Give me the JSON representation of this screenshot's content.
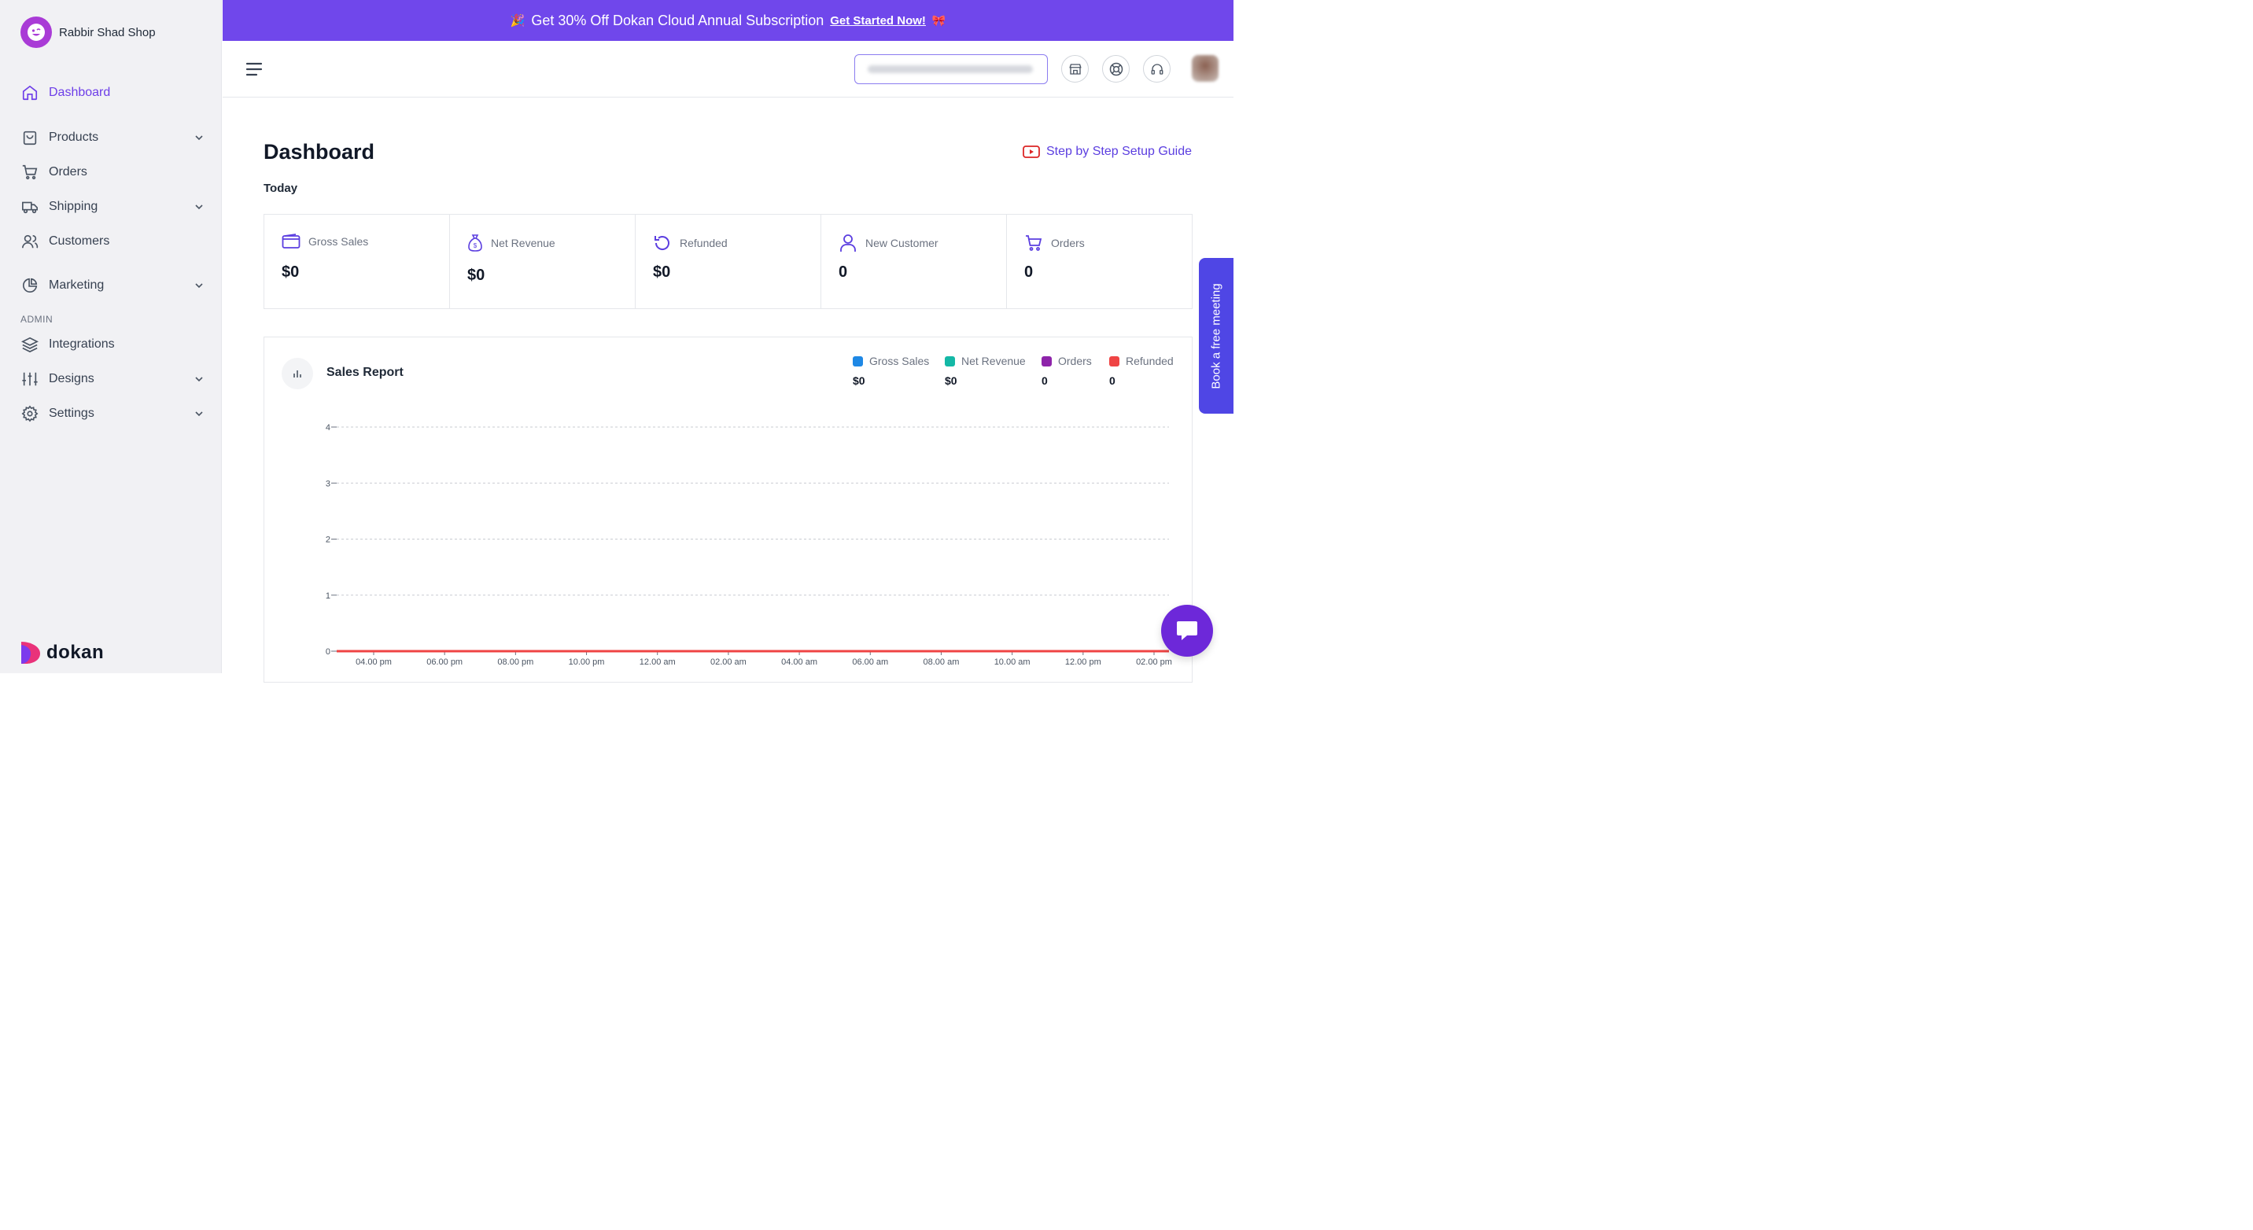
{
  "sidebar": {
    "shop_name": "Rabbir Shad Shop",
    "items": [
      {
        "label": "Dashboard",
        "icon": "home-icon",
        "active": true
      },
      {
        "label": "Products",
        "icon": "bag-icon",
        "has_submenu": true
      },
      {
        "label": "Orders",
        "icon": "cart-icon"
      },
      {
        "label": "Shipping",
        "icon": "truck-icon",
        "has_submenu": true
      },
      {
        "label": "Customers",
        "icon": "users-icon"
      },
      {
        "label": "Marketing",
        "icon": "pie-chart-icon",
        "has_submenu": true
      },
      {
        "label": "Integrations",
        "icon": "layers-icon"
      },
      {
        "label": "Designs",
        "icon": "sliders-icon",
        "has_submenu": true
      },
      {
        "label": "Settings",
        "icon": "gear-icon",
        "has_submenu": true
      }
    ],
    "admin_label": "ADMIN",
    "logo_text": "dokan"
  },
  "promo": {
    "text": "Get 30% Off Dokan Cloud Annual Subscription",
    "cta": "Get Started Now!"
  },
  "main": {
    "title": "Dashboard",
    "guide_link": "Step by Step Setup Guide",
    "period": "Today",
    "stats": [
      {
        "label": "Gross Sales",
        "value": "$0",
        "icon": "wallet-icon"
      },
      {
        "label": "Net Revenue",
        "value": "$0",
        "icon": "money-bag-icon"
      },
      {
        "label": "Refunded",
        "value": "$0",
        "icon": "refund-icon"
      },
      {
        "label": "New Customer",
        "value": "0",
        "icon": "user-icon"
      },
      {
        "label": "Orders",
        "value": "0",
        "icon": "cart-icon"
      }
    ],
    "report": {
      "title": "Sales Report",
      "legend": [
        {
          "label": "Gross Sales",
          "value": "$0",
          "color": "#1e88e5"
        },
        {
          "label": "Net Revenue",
          "value": "$0",
          "color": "#14b8a6"
        },
        {
          "label": "Orders",
          "value": "0",
          "color": "#8e24aa"
        },
        {
          "label": "Refunded",
          "value": "0",
          "color": "#ef4444"
        }
      ]
    }
  },
  "book_meeting": "Book a free meeting",
  "chart_data": {
    "type": "line",
    "x": [
      "04.00 pm",
      "06.00 pm",
      "08.00 pm",
      "10.00 pm",
      "12.00 am",
      "02.00 am",
      "04.00 am",
      "06.00 am",
      "08.00 am",
      "10.00 am",
      "12.00 pm",
      "02.00 pm"
    ],
    "series": [
      {
        "name": "Gross Sales",
        "values": [
          0,
          0,
          0,
          0,
          0,
          0,
          0,
          0,
          0,
          0,
          0,
          0
        ],
        "color": "#1e88e5"
      },
      {
        "name": "Net Revenue",
        "values": [
          0,
          0,
          0,
          0,
          0,
          0,
          0,
          0,
          0,
          0,
          0,
          0
        ],
        "color": "#14b8a6"
      },
      {
        "name": "Orders",
        "values": [
          0,
          0,
          0,
          0,
          0,
          0,
          0,
          0,
          0,
          0,
          0,
          0
        ],
        "color": "#8e24aa"
      },
      {
        "name": "Refunded",
        "values": [
          0,
          0,
          0,
          0,
          0,
          0,
          0,
          0,
          0,
          0,
          0,
          0
        ],
        "color": "#ef4444"
      }
    ],
    "yticks": [
      0,
      1,
      2,
      3,
      4
    ],
    "ylim": [
      0,
      4
    ],
    "grid": true,
    "legend": "top-right"
  }
}
